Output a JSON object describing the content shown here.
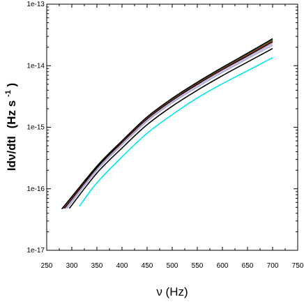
{
  "chart_data": {
    "type": "line",
    "xlabel": "ν (Hz)",
    "ylabel_main": "Idν/dtI",
    "ylabel_unit": "(Hz s",
    "ylabel_sup": "-1",
    "ylabel_close": ")",
    "xlim": [
      250,
      750
    ],
    "ylim": [
      1e-17,
      1e-13
    ],
    "y_scale": "log",
    "grid": false,
    "x_ticks": [
      250,
      300,
      350,
      400,
      450,
      500,
      550,
      600,
      650,
      700,
      750
    ],
    "x_tick_labels": [
      "250",
      "300",
      "350",
      "400",
      "450",
      "500",
      "550",
      "600",
      "650",
      "700",
      "750"
    ],
    "y_ticks": [
      1e-17,
      1e-16,
      1e-15,
      1e-14,
      1e-13
    ],
    "y_tick_labels": [
      "1e-17",
      "1e-16",
      "1e-15",
      "1e-14",
      "1e-13"
    ],
    "series": [
      {
        "color": "#00e5ee",
        "points": [
          [
            315,
            5.2e-17
          ],
          [
            350,
            1.25e-16
          ],
          [
            400,
            3.3e-16
          ],
          [
            450,
            8e-16
          ],
          [
            500,
            1.6e-15
          ],
          [
            550,
            3e-15
          ],
          [
            600,
            5.1e-15
          ],
          [
            650,
            8.3e-15
          ],
          [
            700,
            1.35e-14
          ]
        ]
      },
      {
        "color": "#000000",
        "points": [
          [
            295,
            4.8e-17
          ],
          [
            350,
            1.8e-16
          ],
          [
            400,
            4.6e-16
          ],
          [
            450,
            1.1e-15
          ],
          [
            500,
            2.2e-15
          ],
          [
            550,
            4e-15
          ],
          [
            600,
            6.9e-15
          ],
          [
            650,
            1.15e-14
          ],
          [
            700,
            1.9e-14
          ]
        ]
      },
      {
        "color": "#9aa6d8",
        "points": [
          [
            290,
            4.8e-17
          ],
          [
            350,
            2e-16
          ],
          [
            400,
            5.2e-16
          ],
          [
            450,
            1.25e-15
          ],
          [
            500,
            2.5e-15
          ],
          [
            550,
            4.5e-15
          ],
          [
            600,
            7.8e-15
          ],
          [
            650,
            1.3e-14
          ],
          [
            700,
            2.15e-14
          ]
        ]
      },
      {
        "color": "#c8a0c8",
        "points": [
          [
            287,
            4.8e-17
          ],
          [
            350,
            2.1e-16
          ],
          [
            400,
            5.5e-16
          ],
          [
            450,
            1.32e-15
          ],
          [
            500,
            2.65e-15
          ],
          [
            550,
            4.8e-15
          ],
          [
            600,
            8.3e-15
          ],
          [
            650,
            1.38e-14
          ],
          [
            700,
            2.3e-14
          ]
        ]
      },
      {
        "color": "#000000",
        "points": [
          [
            285,
            4.8e-17
          ],
          [
            350,
            2.2e-16
          ],
          [
            400,
            5.7e-16
          ],
          [
            450,
            1.38e-15
          ],
          [
            500,
            2.75e-15
          ],
          [
            550,
            5e-15
          ],
          [
            600,
            8.7e-15
          ],
          [
            650,
            1.45e-14
          ],
          [
            700,
            2.45e-14
          ]
        ]
      },
      {
        "color": "#d22020",
        "points": [
          [
            283,
            4.8e-17
          ],
          [
            350,
            2.3e-16
          ],
          [
            400,
            5.9e-16
          ],
          [
            450,
            1.43e-15
          ],
          [
            500,
            2.85e-15
          ],
          [
            550,
            5.2e-15
          ],
          [
            600,
            9e-15
          ],
          [
            650,
            1.52e-14
          ],
          [
            700,
            2.55e-14
          ]
        ]
      },
      {
        "color": "#1a7a1a",
        "points": [
          [
            282,
            4.8e-17
          ],
          [
            350,
            2.35e-16
          ],
          [
            400,
            6e-16
          ],
          [
            450,
            1.46e-15
          ],
          [
            500,
            2.9e-15
          ],
          [
            550,
            5.3e-15
          ],
          [
            600,
            9.2e-15
          ],
          [
            650,
            1.56e-14
          ],
          [
            700,
            2.65e-14
          ]
        ]
      },
      {
        "color": "#000000",
        "points": [
          [
            280,
            4.7e-17
          ],
          [
            350,
            2.3e-16
          ],
          [
            400,
            6e-16
          ],
          [
            450,
            1.47e-15
          ],
          [
            500,
            2.95e-15
          ],
          [
            550,
            5.4e-15
          ],
          [
            600,
            9.4e-15
          ],
          [
            650,
            1.6e-14
          ],
          [
            700,
            2.75e-14
          ]
        ]
      }
    ]
  }
}
